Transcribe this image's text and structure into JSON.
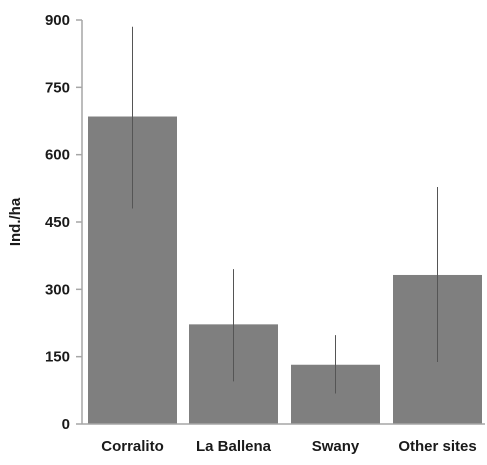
{
  "chart_data": {
    "type": "bar",
    "title": "",
    "xlabel": "",
    "ylabel": "Ind./ha",
    "categories": [
      "Corralito",
      "La Ballena",
      "Swany",
      "Other sites"
    ],
    "values": [
      685,
      222,
      132,
      332
    ],
    "error_low": [
      480,
      95,
      68,
      138
    ],
    "error_high": [
      885,
      345,
      198,
      528
    ],
    "ylim": [
      0,
      900
    ],
    "yticks": [
      0,
      150,
      300,
      450,
      600,
      750,
      900
    ],
    "grid": false,
    "legend": "none",
    "bar_color": "#7f7f7f",
    "error_bar_color": "#555555",
    "axis_color": "#a6a6a6"
  }
}
